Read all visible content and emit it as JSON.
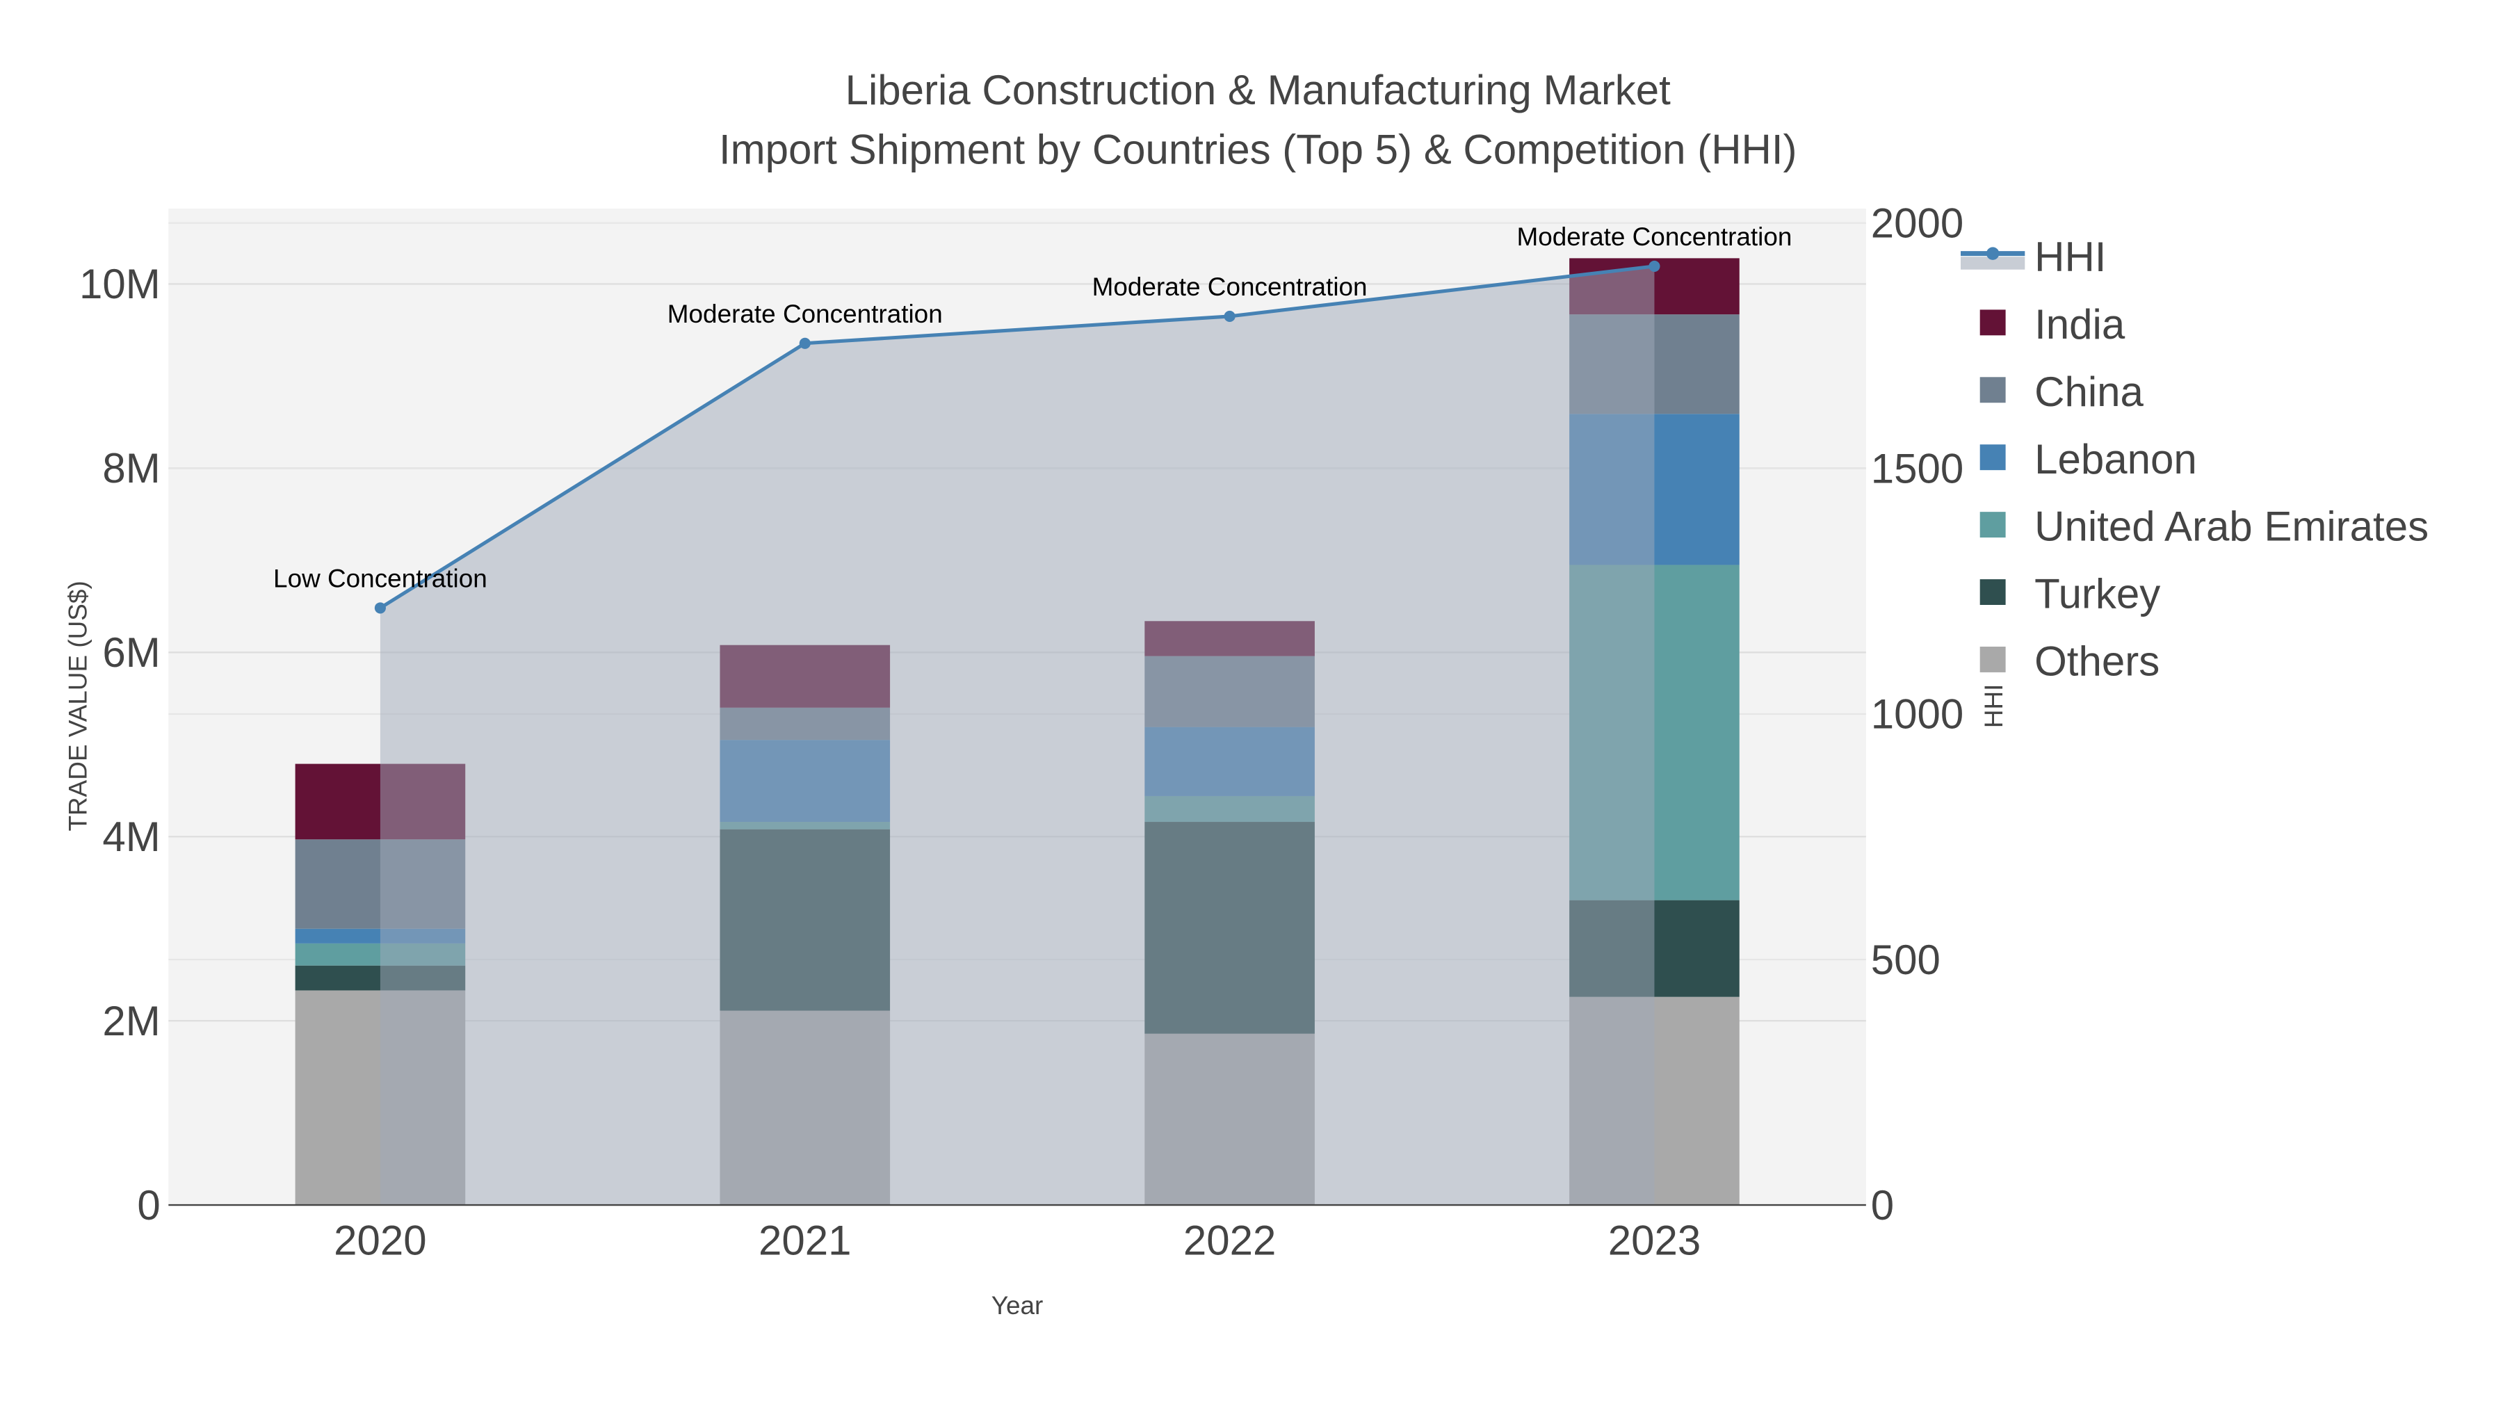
{
  "chart_data": {
    "type": "bar",
    "title": "Liberia Construction & Manufacturing Market",
    "subtitle": "Import Shipment by Countries (Top 5) & Competition (HHI)",
    "xlabel": "Year",
    "ylabel": "TRADE VALUE (US$)",
    "y2label": "HHI",
    "categories": [
      "2020",
      "2021",
      "2022",
      "2023"
    ],
    "ylim": [
      0,
      10800000
    ],
    "y2lim": [
      0,
      2000
    ],
    "yticks": [
      {
        "v": 0,
        "label": "0"
      },
      {
        "v": 2000000,
        "label": "2M"
      },
      {
        "v": 4000000,
        "label": "4M"
      },
      {
        "v": 6000000,
        "label": "6M"
      },
      {
        "v": 8000000,
        "label": "8M"
      },
      {
        "v": 10000000,
        "label": "10M"
      }
    ],
    "y2ticks": [
      {
        "v": 0,
        "label": "0"
      },
      {
        "v": 500,
        "label": "500"
      },
      {
        "v": 1000,
        "label": "1000"
      },
      {
        "v": 1500,
        "label": "1500"
      },
      {
        "v": 2000,
        "label": "2000"
      }
    ],
    "stacked": true,
    "series": [
      {
        "name": "Others",
        "color": "#a9a9a9",
        "values": [
          2330000,
          2110000,
          1860000,
          2260000
        ]
      },
      {
        "name": "Turkey",
        "color": "#2f4f4f",
        "values": [
          270000,
          1970000,
          2300000,
          1050000
        ]
      },
      {
        "name": "United Arab Emirates",
        "color": "#5f9ea0",
        "values": [
          240000,
          80000,
          280000,
          3640000
        ]
      },
      {
        "name": "Lebanon",
        "color": "#4682b4",
        "values": [
          160000,
          890000,
          750000,
          1640000
        ]
      },
      {
        "name": "China",
        "color": "#708090",
        "values": [
          970000,
          350000,
          770000,
          1080000
        ]
      },
      {
        "name": "India",
        "color": "#631236",
        "values": [
          820000,
          680000,
          380000,
          610000
        ]
      }
    ],
    "hhi": {
      "name": "HHI",
      "color": "#4682b4",
      "values": [
        1216,
        1755,
        1810,
        1912
      ],
      "annotations": [
        "Low Concentration",
        "Moderate Concentration",
        "Moderate Concentration",
        "Moderate Concentration"
      ]
    },
    "legend": [
      "HHI",
      "India",
      "China",
      "Lebanon",
      "United Arab Emirates",
      "Turkey",
      "Others"
    ],
    "legend_position": "right",
    "grid": true
  }
}
